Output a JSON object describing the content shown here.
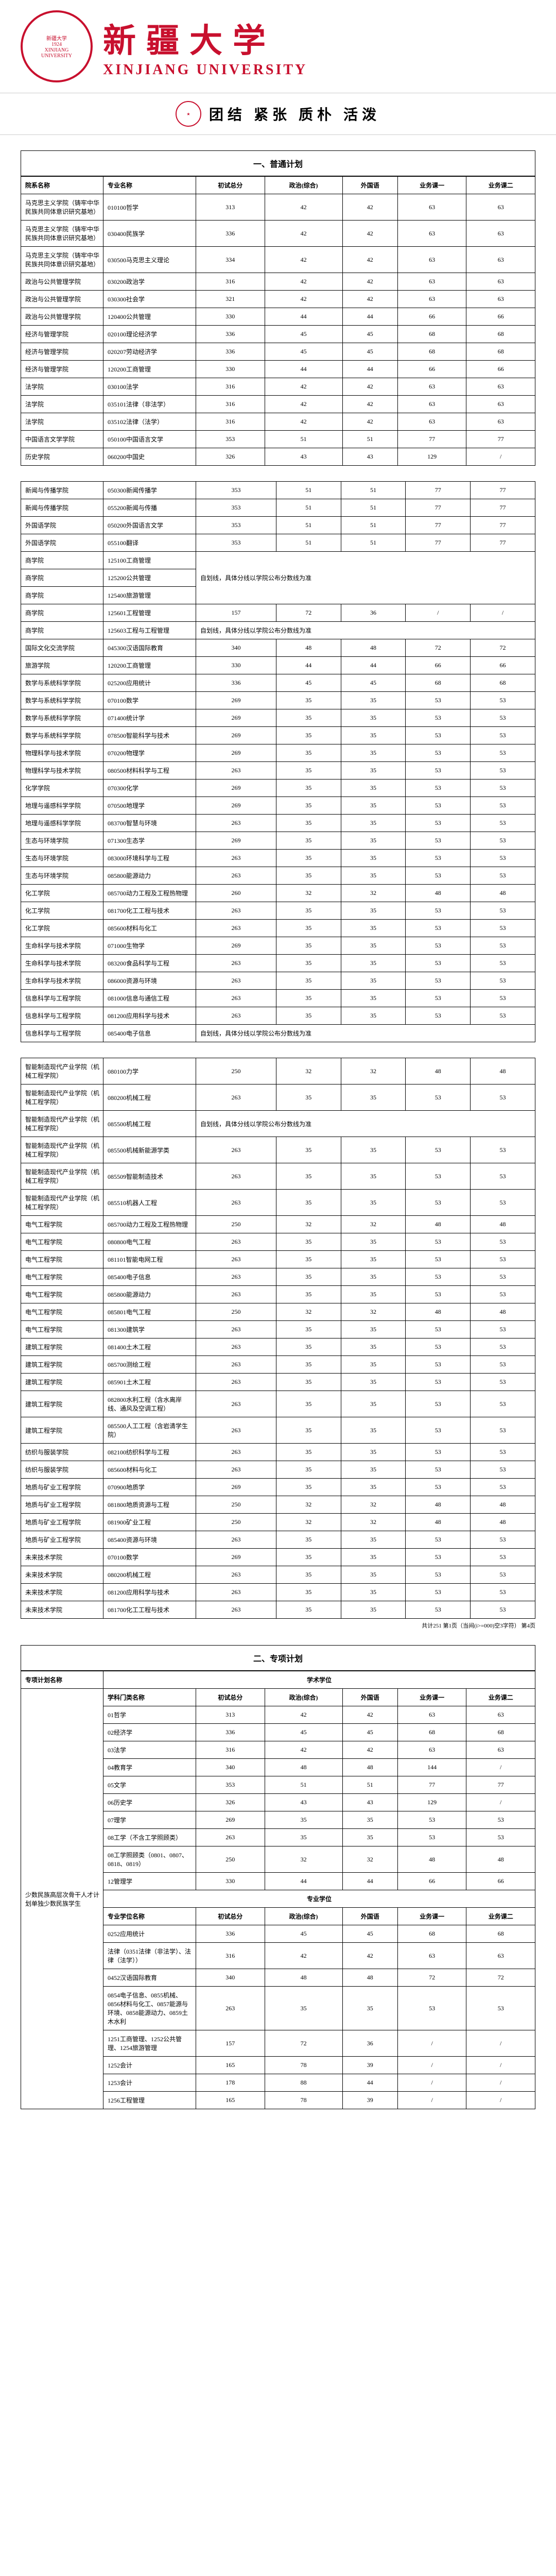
{
  "header": {
    "logo_text": "XINJIANG UNIVERSITY",
    "year": "1924",
    "name_cn": "新疆大学",
    "name_en": "XINJIANG UNIVERSITY",
    "motto": "团结 紧张 质朴 活泼"
  },
  "section1": {
    "title": "一、普通计划",
    "headers": [
      "院系名称",
      "专业名称",
      "初试总分",
      "政治(综合)",
      "外国语",
      "业务课一",
      "业务课二"
    ],
    "block1": [
      [
        "马克思主义学院（铸牢中华民族共同体意识研究基地）",
        "010100哲学",
        "313",
        "42",
        "42",
        "63",
        "63"
      ],
      [
        "马克思主义学院（铸牢中华民族共同体意识研究基地）",
        "030400民族学",
        "336",
        "42",
        "42",
        "63",
        "63"
      ],
      [
        "马克思主义学院（铸牢中华民族共同体意识研究基地）",
        "030500马克思主义理论",
        "334",
        "42",
        "42",
        "63",
        "63"
      ],
      [
        "政治与公共管理学院",
        "030200政治学",
        "316",
        "42",
        "42",
        "63",
        "63"
      ],
      [
        "政治与公共管理学院",
        "030300社会学",
        "321",
        "42",
        "42",
        "63",
        "63"
      ],
      [
        "政治与公共管理学院",
        "120400公共管理",
        "330",
        "44",
        "44",
        "66",
        "66"
      ],
      [
        "经济与管理学院",
        "020100理论经济学",
        "336",
        "45",
        "45",
        "68",
        "68"
      ],
      [
        "经济与管理学院",
        "020207劳动经济学",
        "336",
        "45",
        "45",
        "68",
        "68"
      ],
      [
        "经济与管理学院",
        "120200工商管理",
        "330",
        "44",
        "44",
        "66",
        "66"
      ],
      [
        "法学院",
        "030100法学",
        "316",
        "42",
        "42",
        "63",
        "63"
      ],
      [
        "法学院",
        "035101法律（非法学）",
        "316",
        "42",
        "42",
        "63",
        "63"
      ],
      [
        "法学院",
        "035102法律（法学）",
        "316",
        "42",
        "42",
        "63",
        "63"
      ],
      [
        "中国语言文学学院",
        "050100中国语言文学",
        "353",
        "51",
        "51",
        "77",
        "77"
      ],
      [
        "历史学院",
        "060200中国史",
        "326",
        "43",
        "43",
        "129",
        "/"
      ]
    ],
    "block2": [
      [
        "新闻与传播学院",
        "050300新闻传播学",
        "353",
        "51",
        "51",
        "77",
        "77"
      ],
      [
        "新闻与传播学院",
        "055200新闻与传播",
        "353",
        "51",
        "51",
        "77",
        "77"
      ],
      [
        "外国语学院",
        "050200外国语言文学",
        "353",
        "51",
        "51",
        "77",
        "77"
      ],
      [
        "外国语学院",
        "055100翻译",
        "353",
        "51",
        "51",
        "77",
        "77"
      ],
      [
        "商学院",
        "125100工商管理",
        {
          "colspan": 5,
          "rowspan": 3,
          "text": "自划线，具体分线以学院公布分数线为准"
        }
      ],
      [
        "商学院",
        "125200公共管理"
      ],
      [
        "商学院",
        "125400旅游管理"
      ],
      [
        "商学院",
        "125601工程管理",
        "157",
        "72",
        "36",
        "/",
        "/"
      ],
      [
        "商学院",
        "125603工程与工程管理",
        {
          "colspan": 5,
          "text": "自划线，具体分线以学院公布分数线为准"
        }
      ],
      [
        "国际文化交流学院",
        "045300汉语国际教育",
        "340",
        "48",
        "48",
        "72",
        "72"
      ],
      [
        "旅游学院",
        "120200工商管理",
        "330",
        "44",
        "44",
        "66",
        "66"
      ],
      [
        "数学与系统科学学院",
        "025200应用统计",
        "336",
        "45",
        "45",
        "68",
        "68"
      ],
      [
        "数学与系统科学学院",
        "070100数学",
        "269",
        "35",
        "35",
        "53",
        "53"
      ],
      [
        "数学与系统科学学院",
        "071400统计学",
        "269",
        "35",
        "35",
        "53",
        "53"
      ],
      [
        "数学与系统科学学院",
        "078500智能科学与技术",
        "269",
        "35",
        "35",
        "53",
        "53"
      ],
      [
        "物理科学与技术学院",
        "070200物理学",
        "269",
        "35",
        "35",
        "53",
        "53"
      ],
      [
        "物理科学与技术学院",
        "080500材料科学与工程",
        "263",
        "35",
        "35",
        "53",
        "53"
      ],
      [
        "化学学院",
        "070300化学",
        "269",
        "35",
        "35",
        "53",
        "53"
      ],
      [
        "地理与遥感科学学院",
        "070500地理学",
        "269",
        "35",
        "35",
        "53",
        "53"
      ],
      [
        "地理与遥感科学学院",
        "083700智慧与环境",
        "263",
        "35",
        "35",
        "53",
        "53"
      ],
      [
        "生态与环境学院",
        "071300生态学",
        "269",
        "35",
        "35",
        "53",
        "53"
      ],
      [
        "生态与环境学院",
        "083000环境科学与工程",
        "263",
        "35",
        "35",
        "53",
        "53"
      ],
      [
        "生态与环境学院",
        "085800能源动力",
        "263",
        "35",
        "35",
        "53",
        "53"
      ],
      [
        "化工学院",
        "085700动力工程及工程热物理",
        "260",
        "32",
        "32",
        "48",
        "48"
      ],
      [
        "化工学院",
        "081700化工工程与技术",
        "263",
        "35",
        "35",
        "53",
        "53"
      ],
      [
        "化工学院",
        "085600材料与化工",
        "263",
        "35",
        "35",
        "53",
        "53"
      ],
      [
        "生命科学与技术学院",
        "071000生物学",
        "269",
        "35",
        "35",
        "53",
        "53"
      ],
      [
        "生命科学与技术学院",
        "083200食品科学与工程",
        "263",
        "35",
        "35",
        "53",
        "53"
      ],
      [
        "生命科学与技术学院",
        "086000资源与环境",
        "263",
        "35",
        "35",
        "53",
        "53"
      ],
      [
        "信息科学与工程学院",
        "081000信息与通信工程",
        "263",
        "35",
        "35",
        "53",
        "53"
      ],
      [
        "信息科学与工程学院",
        "081200应用科学与技术",
        "263",
        "35",
        "35",
        "53",
        "53"
      ],
      [
        "信息科学与工程学院",
        "085400电子信息",
        {
          "colspan": 5,
          "text": "自划线，具体分线以学院公布分数线为准"
        }
      ]
    ],
    "block3": [
      [
        "智能制造现代产业学院（机械工程学院）",
        "080100力学",
        "250",
        "32",
        "32",
        "48",
        "48"
      ],
      [
        "智能制造现代产业学院（机械工程学院）",
        "080200机械工程",
        "263",
        "35",
        "35",
        "53",
        "53"
      ],
      [
        "智能制造现代产业学院（机械工程学院）",
        "085500机械工程",
        {
          "colspan": 5,
          "text": "自划线，具体分线以学院公布分数线为准"
        }
      ],
      [
        "智能制造现代产业学院（机械工程学院）",
        "085500机械新能源学类",
        "263",
        "35",
        "35",
        "53",
        "53"
      ],
      [
        "智能制造现代产业学院（机械工程学院）",
        "085509智能制造技术",
        "263",
        "35",
        "35",
        "53",
        "53"
      ],
      [
        "智能制造现代产业学院（机械工程学院）",
        "085510机器人工程",
        "263",
        "35",
        "35",
        "53",
        "53"
      ],
      [
        "电气工程学院",
        "085700动力工程及工程热物理",
        "250",
        "32",
        "32",
        "48",
        "48"
      ],
      [
        "电气工程学院",
        "080800电气工程",
        "263",
        "35",
        "35",
        "53",
        "53"
      ],
      [
        "电气工程学院",
        "081101智能电网工程",
        "263",
        "35",
        "35",
        "53",
        "53"
      ],
      [
        "电气工程学院",
        "085400电子信息",
        "263",
        "35",
        "35",
        "53",
        "53"
      ],
      [
        "电气工程学院",
        "085800能源动力",
        "263",
        "35",
        "35",
        "53",
        "53"
      ],
      [
        "电气工程学院",
        "085801电气工程",
        "250",
        "32",
        "32",
        "48",
        "48"
      ],
      [
        "电气工程学院",
        "081300建筑学",
        "263",
        "35",
        "35",
        "53",
        "53"
      ],
      [
        "建筑工程学院",
        "081400土木工程",
        "263",
        "35",
        "35",
        "53",
        "53"
      ],
      [
        "建筑工程学院",
        "085700测绘工程",
        "263",
        "35",
        "35",
        "53",
        "53"
      ],
      [
        "建筑工程学院",
        "085901土木工程",
        "263",
        "35",
        "35",
        "53",
        "53"
      ],
      [
        "建筑工程学院",
        "082800水利工程（含水离岸线、通风及空调工程）",
        "263",
        "35",
        "35",
        "53",
        "53"
      ],
      [
        "建筑工程学院",
        "085500人工工程（含岩清学生院）",
        "263",
        "35",
        "35",
        "53",
        "53"
      ],
      [
        "纺织与服装学院",
        "082100纺织科学与工程",
        "263",
        "35",
        "35",
        "53",
        "53"
      ],
      [
        "纺织与服装学院",
        "085600材料与化工",
        "263",
        "35",
        "35",
        "53",
        "53"
      ],
      [
        "地质与矿业工程学院",
        "070900地质学",
        "269",
        "35",
        "35",
        "53",
        "53"
      ],
      [
        "地质与矿业工程学院",
        "081800地质资源与工程",
        "250",
        "32",
        "32",
        "48",
        "48"
      ],
      [
        "地质与矿业工程学院",
        "081900矿业工程",
        "250",
        "32",
        "32",
        "48",
        "48"
      ],
      [
        "地质与矿业工程学院",
        "085400资源与环境",
        "263",
        "35",
        "35",
        "53",
        "53"
      ],
      [
        "未来技术学院",
        "070100数学",
        "269",
        "35",
        "35",
        "53",
        "53"
      ],
      [
        "未来技术学院",
        "080200机械工程",
        "263",
        "35",
        "35",
        "53",
        "53"
      ],
      [
        "未来技术学院",
        "081200应用科学与技术",
        "263",
        "35",
        "35",
        "53",
        "53"
      ],
      [
        "未来技术学院",
        "081700化工工程与技术",
        "263",
        "35",
        "35",
        "53",
        "53"
      ]
    ],
    "footnote": "共计251 第1页（当间(i>=000)空3字符） 第4页"
  },
  "section2": {
    "title": "二、专项计划",
    "header_top": "专项计划名称",
    "header_mid": "学术学位",
    "headers1": [
      "学科门类名称",
      "初试总分",
      "政治(综合)",
      "外国语",
      "业务课一",
      "业务课二"
    ],
    "header_mid2": "专业学位",
    "headers2": [
      "专业学位名称",
      "初试总分",
      "政治(综合)",
      "外国语",
      "业务课一",
      "业务课二"
    ],
    "plan_name": "少数民族高层次骨干人才计划单独少数民族学生",
    "rows1": [
      [
        "01哲学",
        "313",
        "42",
        "42",
        "63",
        "63"
      ],
      [
        "02经济学",
        "336",
        "45",
        "45",
        "68",
        "68"
      ],
      [
        "03法学",
        "316",
        "42",
        "42",
        "63",
        "63"
      ],
      [
        "04教育学",
        "340",
        "48",
        "48",
        "144",
        "/"
      ],
      [
        "05文学",
        "353",
        "51",
        "51",
        "77",
        "77"
      ],
      [
        "06历史学",
        "326",
        "43",
        "43",
        "129",
        "/"
      ],
      [
        "07理学",
        "269",
        "35",
        "35",
        "53",
        "53"
      ],
      [
        "08工学（不含工学照顾类）",
        "263",
        "35",
        "35",
        "53",
        "53"
      ],
      [
        "08工学照顾类（0801、0807、0818、0819）",
        "250",
        "32",
        "32",
        "48",
        "48"
      ],
      [
        "12管理学",
        "330",
        "44",
        "44",
        "66",
        "66"
      ]
    ],
    "rows2": [
      [
        "0252应用统计",
        "336",
        "45",
        "45",
        "68",
        "68"
      ],
      [
        "法律（0351法律（非法学）、法律（法学））",
        "316",
        "42",
        "42",
        "63",
        "63"
      ],
      [
        "0452汉语国际教育",
        "340",
        "48",
        "48",
        "72",
        "72"
      ],
      [
        "0854电子信息、0855机械、0856材料与化工、0857能源与环境、0858能源动力、0859土木水利",
        "263",
        "35",
        "35",
        "53",
        "53"
      ],
      [
        "1251工商管理、1252公共管理、1254旅游管理",
        "157",
        "72",
        "36",
        "/",
        "/"
      ],
      [
        "1252会计",
        "165",
        "78",
        "39",
        "/",
        "/"
      ],
      [
        "1253会计",
        "178",
        "88",
        "44",
        "/",
        "/"
      ],
      [
        "1256工程管理",
        "165",
        "78",
        "39",
        "/",
        "/"
      ]
    ]
  }
}
